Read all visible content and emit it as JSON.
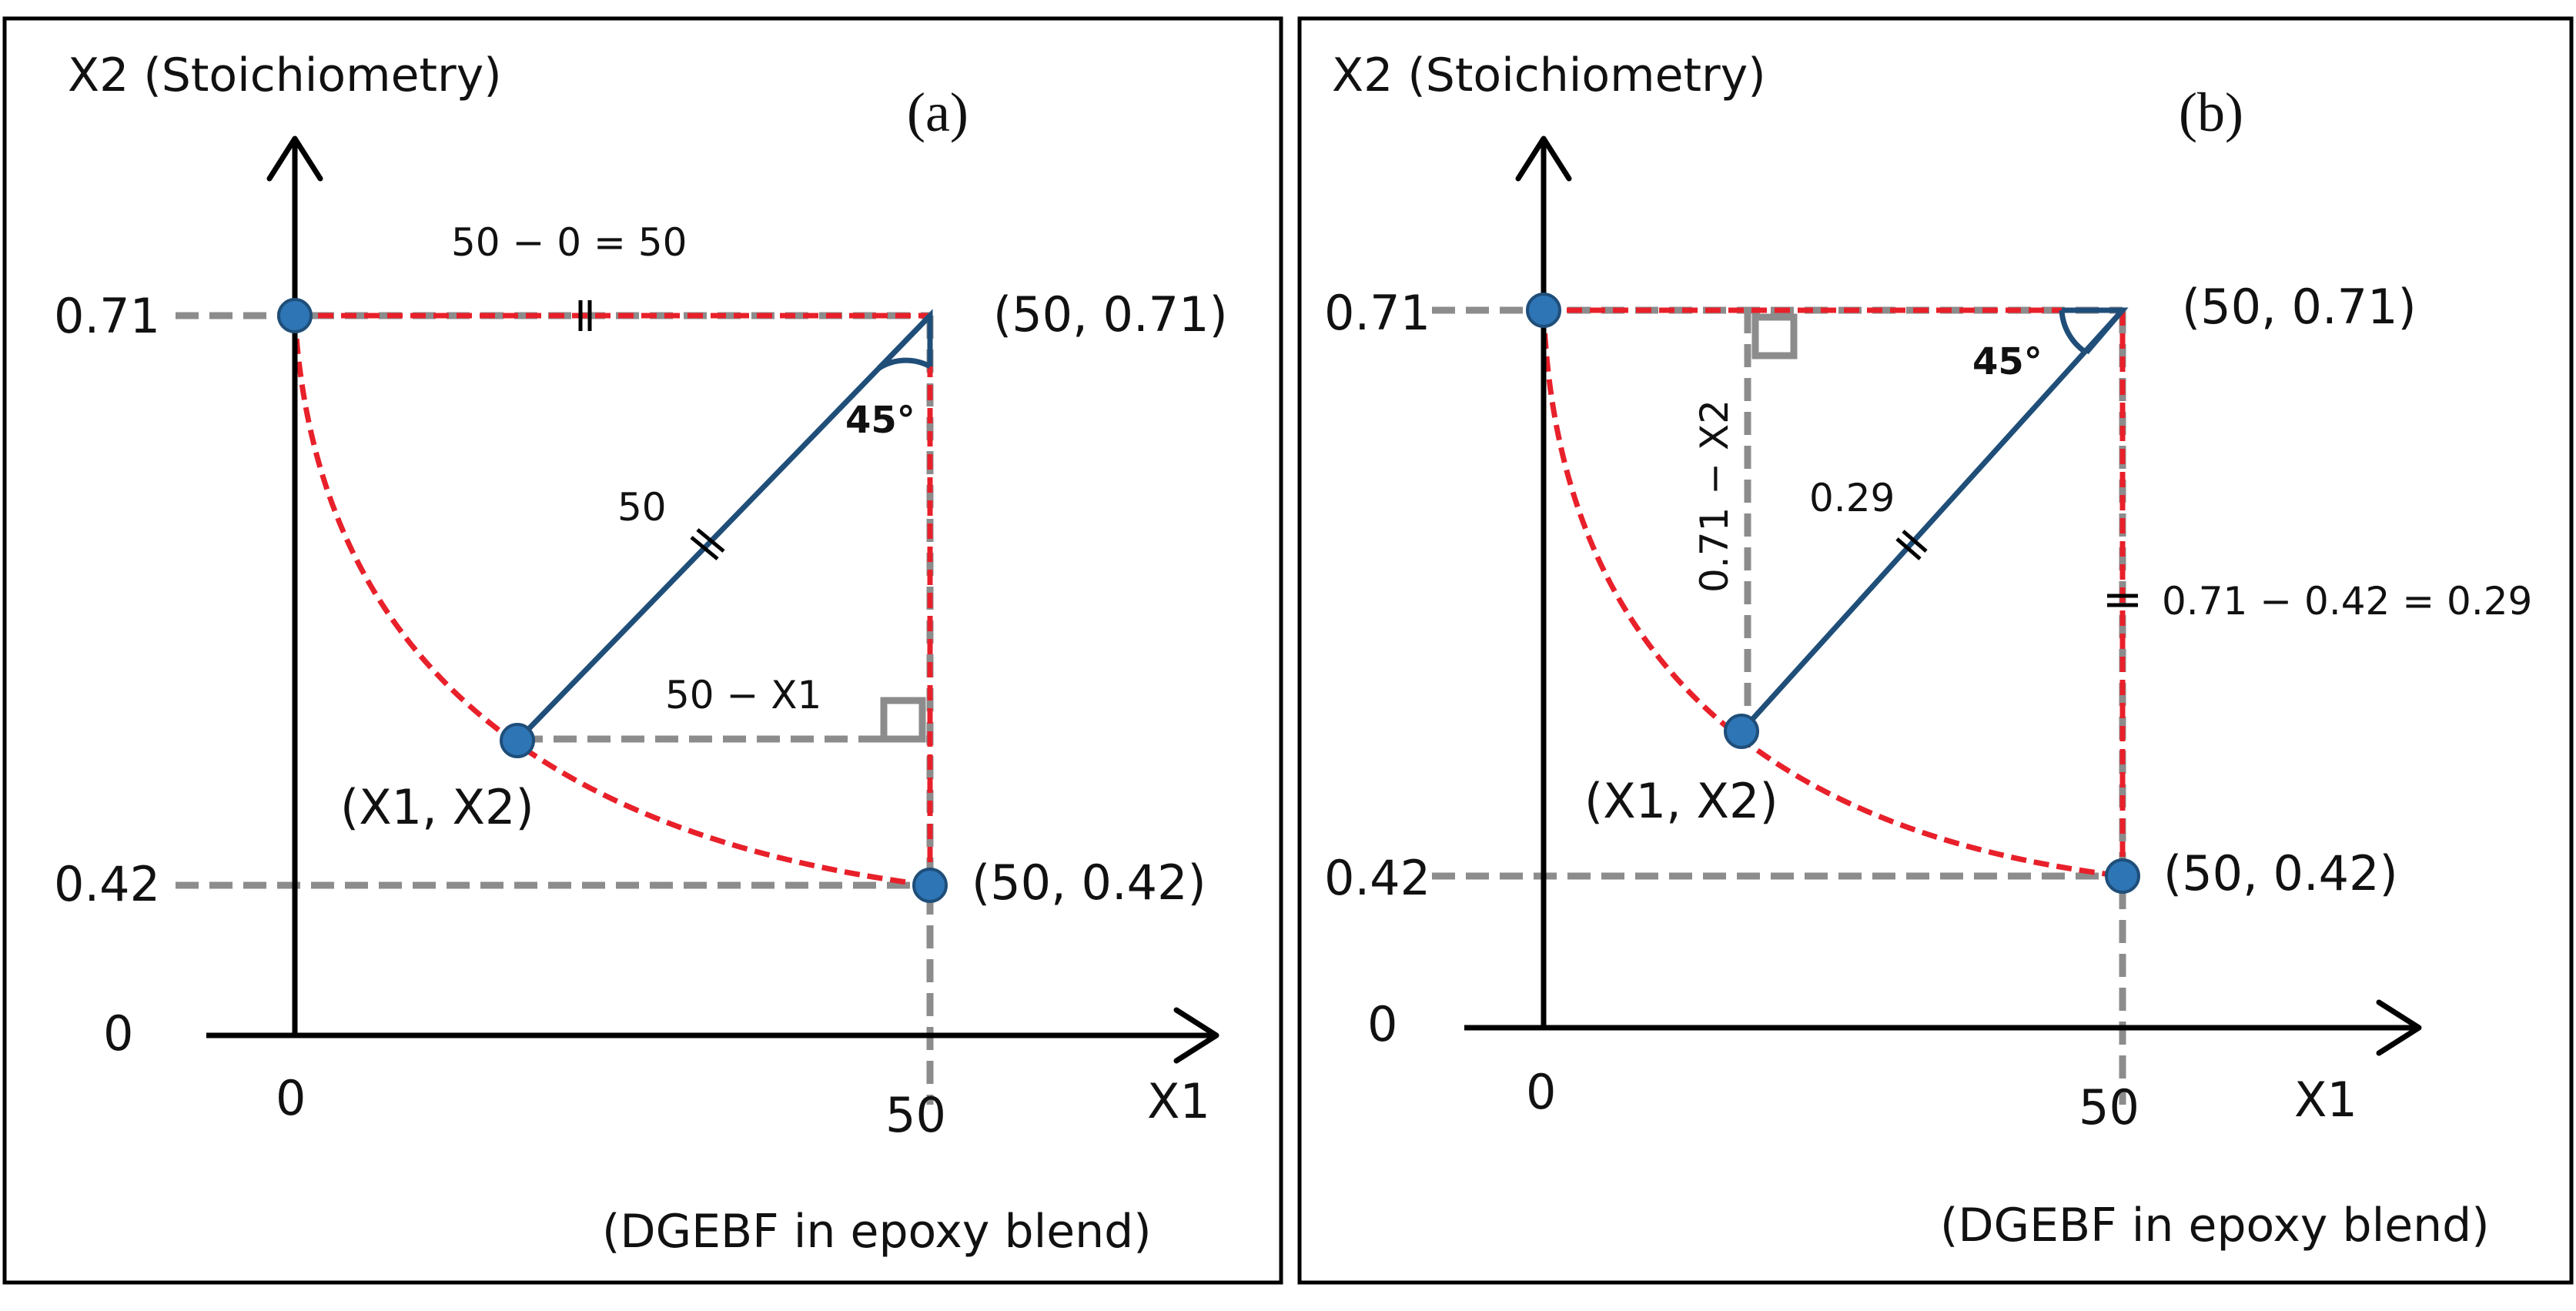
{
  "panels": [
    {
      "id": "a",
      "panel_label": "(a)",
      "y_axis_title": "X2 (Stoichiometry)",
      "x_axis_title": "X1",
      "x_axis_subtitle": "(DGEBF in epoxy blend)",
      "y_ticks": [
        "0.71",
        "0.42",
        "0"
      ],
      "x_ticks": [
        "0",
        "50"
      ],
      "point_labels": {
        "top_right": "(50, 0.71)",
        "bottom_right": "(50, 0.42)",
        "curve_point": "(X1, X2)"
      },
      "annotations": {
        "top_segment": "50 − 0 = 50",
        "hypotenuse": "50",
        "bottom_segment": "50 − X1",
        "angle": "45°"
      }
    },
    {
      "id": "b",
      "panel_label": "(b)",
      "y_axis_title": "X2 (Stoichiometry)",
      "x_axis_title": "X1",
      "x_axis_subtitle": "(DGEBF in epoxy blend)",
      "y_ticks": [
        "0.71",
        "0.42",
        "0"
      ],
      "x_ticks": [
        "0",
        "50"
      ],
      "point_labels": {
        "top_right": "(50, 0.71)",
        "bottom_right": "(50, 0.42)",
        "curve_point": "(X1, X2)"
      },
      "annotations": {
        "vertical_segment": "0.71 − X2",
        "hypotenuse": "0.29",
        "right_segment": "0.71 − 0.42 = 0.29",
        "angle": "45°"
      }
    }
  ],
  "colors": {
    "axis": "#000000",
    "guide_dash": "#8c8c8c",
    "curve": "#e8202a",
    "radius_line": "#1f4e79",
    "point_fill": "#2e75b6"
  }
}
